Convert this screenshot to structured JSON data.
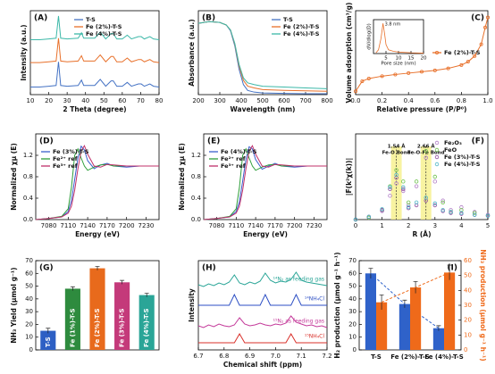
{
  "chart_data": [
    {
      "type": "line",
      "title": "(A)",
      "xlabel": "2 Theta (degree)",
      "ylabel": "Intensity (a.u.)",
      "xlim": [
        10,
        80
      ],
      "xticks": [
        10,
        20,
        30,
        40,
        50,
        60,
        70,
        80
      ],
      "ylim": [
        0,
        11
      ],
      "yticks": [],
      "legend": "upper center",
      "x": [
        10,
        15,
        20,
        24,
        25.3,
        26.5,
        30,
        36,
        37.8,
        39,
        45,
        48,
        51,
        53.9,
        55.1,
        57,
        60,
        62.7,
        65,
        68.8,
        70.3,
        72,
        75,
        77,
        80
      ],
      "series": [
        {
          "name": "T-S",
          "color": "#4472c4",
          "values": [
            1.0,
            1.0,
            1.1,
            1.2,
            4.3,
            1.2,
            1.1,
            1.2,
            1.9,
            1.2,
            1.2,
            2.0,
            1.1,
            1.8,
            1.8,
            1.1,
            1.1,
            1.6,
            1.1,
            1.4,
            1.4,
            1.1,
            1.4,
            1.1,
            1.0
          ]
        },
        {
          "name": "Fe (2%)-T-S",
          "color": "#e8702a",
          "values": [
            4.2,
            4.2,
            4.3,
            4.4,
            7.4,
            4.4,
            4.3,
            4.4,
            5.1,
            4.4,
            4.4,
            5.2,
            4.3,
            5.0,
            5.0,
            4.3,
            4.3,
            4.8,
            4.3,
            4.6,
            4.6,
            4.3,
            4.6,
            4.3,
            4.2
          ]
        },
        {
          "name": "Fe (4%)-T-S",
          "color": "#3cb8a8",
          "values": [
            7.2,
            7.2,
            7.3,
            7.4,
            10.3,
            7.4,
            7.3,
            7.4,
            8.1,
            7.4,
            7.4,
            8.2,
            7.3,
            8.0,
            8.0,
            7.3,
            7.3,
            7.8,
            7.3,
            7.6,
            7.6,
            7.3,
            7.6,
            7.3,
            7.2
          ]
        }
      ]
    },
    {
      "type": "line",
      "title": "(B)",
      "xlabel": "Wavelength (nm)",
      "ylabel": "Absorbance (a.u.)",
      "xlim": [
        200,
        800
      ],
      "xticks": [
        200,
        300,
        400,
        500,
        600,
        700,
        800
      ],
      "ylim": [
        0,
        10
      ],
      "yticks": [],
      "legend": "upper right",
      "x": [
        200,
        250,
        300,
        330,
        350,
        370,
        390,
        410,
        430,
        460,
        500,
        600,
        700,
        800
      ],
      "series": [
        {
          "name": "T-S",
          "color": "#4472c4",
          "values": [
            8.5,
            8.7,
            8.6,
            8.3,
            7.6,
            5.8,
            3.0,
            1.2,
            0.5,
            0.3,
            0.2,
            0.15,
            0.1,
            0.1
          ]
        },
        {
          "name": "Fe (2%)-T-S",
          "color": "#e8702a",
          "values": [
            8.5,
            8.7,
            8.6,
            8.3,
            7.7,
            6.0,
            3.4,
            1.7,
            1.0,
            0.8,
            0.6,
            0.5,
            0.45,
            0.4
          ]
        },
        {
          "name": "Fe (4%)-T-S",
          "color": "#3cb8a8",
          "values": [
            8.5,
            8.7,
            8.6,
            8.3,
            7.7,
            6.1,
            3.6,
            2.0,
            1.4,
            1.2,
            1.0,
            0.9,
            0.8,
            0.7
          ]
        }
      ]
    },
    {
      "type": "line",
      "title": "(C)",
      "xlabel": "Relative pressure (P/P⁰)",
      "ylabel": "Volume adsorption (cm³/g)",
      "xlim": [
        0,
        1
      ],
      "xticks": [
        {
          "value": 0,
          "label": "0.0"
        },
        0.2,
        0.4,
        0.6,
        0.8,
        {
          "value": 1,
          "label": "1.0"
        }
      ],
      "ylim": [
        0,
        250
      ],
      "yticks": [],
      "legend": "center right",
      "x": [
        0,
        0.05,
        0.1,
        0.2,
        0.3,
        0.4,
        0.5,
        0.6,
        0.7,
        0.8,
        0.85,
        0.9,
        0.95,
        0.98,
        1.0
      ],
      "series": [
        {
          "name": "Fe (2%)-T-S",
          "color": "#e8702a",
          "marker": true,
          "values": [
            10,
            40,
            48,
            55,
            60,
            64,
            68,
            72,
            78,
            88,
            98,
            115,
            150,
            200,
            230
          ]
        }
      ]
    },
    {
      "type": "line",
      "xlabel": "Pore size (nm)",
      "ylabel": "dV/dlog(D)",
      "xlim": [
        0,
        20
      ],
      "xticks": [
        5,
        10,
        15,
        20
      ],
      "ylim": [
        0,
        4.5
      ],
      "yticks": [],
      "x": [
        1,
        2,
        3,
        3.8,
        4.5,
        5,
        6,
        8,
        10,
        15,
        20
      ],
      "series": [
        {
          "color": "#e8702a",
          "values": [
            0.1,
            0.5,
            2.0,
            4.0,
            2.5,
            1.2,
            0.5,
            0.3,
            0.2,
            0.1,
            0.05
          ]
        }
      ],
      "annotations": [
        {
          "x": 3.8,
          "label": "3.8 nm"
        }
      ]
    },
    {
      "type": "line",
      "title": "(D)",
      "xlabel": "Energy (eV)",
      "ylabel": "Normalized χμ (E)",
      "xlim": [
        7060,
        7250
      ],
      "xticks": [
        7080,
        7110,
        7140,
        7170,
        7200,
        7230
      ],
      "ylim": [
        0,
        1.6
      ],
      "yticks": [
        {
          "value": 0,
          "label": "0.0"
        },
        0.4,
        0.8,
        1.2
      ],
      "legend": "upper left",
      "x": [
        7060,
        7080,
        7100,
        7110,
        7115,
        7120,
        7125,
        7130,
        7135,
        7140,
        7150,
        7160,
        7170,
        7180,
        7200,
        7220,
        7250
      ],
      "series": [
        {
          "name": "Fe (3%)-T-S",
          "color": "#3a5fcd",
          "values": [
            0.0,
            0.02,
            0.05,
            0.15,
            0.35,
            0.75,
            1.15,
            1.37,
            1.3,
            1.1,
            0.95,
            1.02,
            1.05,
            1.0,
            0.98,
            1.0,
            1.0
          ]
        },
        {
          "name": "Fe²⁺ ref",
          "color": "#2e9e3a",
          "values": [
            0.0,
            0.02,
            0.06,
            0.2,
            0.6,
            1.2,
            1.32,
            1.15,
            1.0,
            0.92,
            0.98,
            1.02,
            1.03,
            1.0,
            1.0,
            1.0,
            1.0
          ]
        },
        {
          "name": "Fe³⁺ ref",
          "color": "#c0306a",
          "values": [
            0.0,
            0.02,
            0.05,
            0.12,
            0.25,
            0.55,
            0.95,
            1.28,
            1.38,
            1.22,
            1.0,
            0.98,
            1.03,
            1.02,
            1.0,
            1.0,
            1.0
          ]
        }
      ]
    },
    {
      "type": "line",
      "title": "(E)",
      "xlabel": "Energy (eV)",
      "ylabel": "Normalized χμ (E)",
      "xlim": [
        7060,
        7250
      ],
      "xticks": [
        7080,
        7110,
        7140,
        7170,
        7200,
        7230
      ],
      "ylim": [
        0,
        1.6
      ],
      "yticks": [
        {
          "value": 0,
          "label": "0.0"
        },
        0.4,
        0.8,
        1.2
      ],
      "legend": "upper left",
      "x": [
        7060,
        7080,
        7100,
        7110,
        7115,
        7120,
        7125,
        7130,
        7135,
        7140,
        7150,
        7160,
        7170,
        7180,
        7200,
        7220,
        7250
      ],
      "series": [
        {
          "name": "Fe (4%)-T-S",
          "color": "#3a5fcd",
          "values": [
            0.0,
            0.02,
            0.05,
            0.15,
            0.33,
            0.72,
            1.12,
            1.36,
            1.32,
            1.12,
            0.94,
            1.0,
            1.05,
            1.0,
            0.98,
            1.0,
            1.0
          ]
        },
        {
          "name": "Fe²⁺ ref",
          "color": "#2e9e3a",
          "values": [
            0.0,
            0.02,
            0.06,
            0.2,
            0.6,
            1.2,
            1.32,
            1.15,
            1.0,
            0.92,
            0.98,
            1.02,
            1.03,
            1.0,
            1.0,
            1.0,
            1.0
          ]
        },
        {
          "name": "Fe³⁺ ref",
          "color": "#c0306a",
          "values": [
            0.0,
            0.02,
            0.05,
            0.12,
            0.25,
            0.55,
            0.95,
            1.28,
            1.38,
            1.22,
            1.0,
            0.98,
            1.03,
            1.02,
            1.0,
            1.0,
            1.0
          ]
        }
      ]
    },
    {
      "type": "scatter",
      "title": "(F)",
      "xlabel": "R (Å)",
      "ylabel": "|F(k²χ(k))|",
      "xlim": [
        0,
        5
      ],
      "xticks": [
        0,
        1,
        2,
        3,
        4,
        5
      ],
      "ylim": [
        0,
        9
      ],
      "yticks": [],
      "legend": "upper right",
      "x": [
        0,
        0.5,
        1.0,
        1.3,
        1.54,
        1.8,
        2.0,
        2.3,
        2.66,
        3.0,
        3.3,
        3.6,
        4.0,
        4.5,
        5.0
      ],
      "series": [
        {
          "name": "Fe₂O₃",
          "color": "#b07cc6",
          "values": [
            0,
            0.2,
            0.9,
            2.5,
            3.8,
            3.0,
            1.5,
            3.5,
            6.5,
            4.0,
            2.0,
            1.0,
            1.3,
            0.8,
            0.5
          ]
        },
        {
          "name": "FeO",
          "color": "#6cc04a",
          "values": [
            0,
            0.2,
            1.0,
            3.5,
            5.2,
            4.0,
            1.8,
            4.0,
            7.2,
            4.5,
            1.8,
            0.8,
            1.0,
            0.7,
            0.4
          ]
        },
        {
          "name": "Fe (3%)-T-S",
          "color": "#8d4a9e",
          "values": [
            0,
            0.3,
            1.0,
            3.2,
            4.4,
            3.2,
            1.2,
            1.5,
            2.0,
            1.5,
            0.9,
            0.7,
            0.6,
            0.5,
            0.4
          ]
        },
        {
          "name": "Fe (4%)-T-S",
          "color": "#4fb6c8",
          "values": [
            0,
            0.3,
            1.1,
            3.4,
            4.7,
            3.4,
            1.3,
            1.8,
            2.3,
            1.7,
            1.0,
            0.8,
            0.7,
            0.5,
            0.4
          ]
        }
      ],
      "annotation_lines": true,
      "annotations": [
        {
          "x": 1.54,
          "label": "1.54 Å",
          "text": "Fe-O Bond"
        },
        {
          "x": 2.66,
          "label": "2.66 Å",
          "text": "Fe-O-Fe Bond"
        }
      ]
    },
    {
      "type": "bar",
      "title": "(G)",
      "ylabel": "NH₃ Yield (μmol g⁻¹)",
      "category_labels": "inside",
      "categories": [
        "T-S",
        "Fe (1%)-T-S",
        "Fe (2%)-T-S",
        "Fe (3%)-T-S",
        "Fe (4%)-T-S"
      ],
      "values": [
        15,
        48,
        64,
        53,
        43
      ],
      "errors": [
        2,
        1.5,
        1.5,
        1.5,
        1.5
      ],
      "colors": [
        "#2d5fc4",
        "#2e8b3e",
        "#e86a1c",
        "#c43a7a",
        "#2aa597"
      ],
      "ylim": [
        0,
        70
      ],
      "yticks": [
        0,
        10,
        20,
        30,
        40,
        50,
        60,
        70
      ]
    },
    {
      "type": "line",
      "title": "(H)",
      "xlabel": "Chemical shift (ppm)",
      "ylabel": "Intensity",
      "legend": "inline",
      "xlim": [
        6.7,
        7.2
      ],
      "xticks": [
        6.7,
        6.8,
        6.9,
        {
          "value": 7,
          "label": "7.0"
        },
        7.1,
        7.2
      ],
      "ylim": [
        0,
        10
      ],
      "yticks": [],
      "x": [
        6.7,
        6.72,
        6.74,
        6.76,
        6.78,
        6.8,
        6.82,
        6.84,
        6.86,
        6.88,
        6.9,
        6.92,
        6.94,
        6.96,
        6.98,
        7.0,
        7.02,
        7.04,
        7.06,
        7.08,
        7.1,
        7.12,
        7.14,
        7.16,
        7.18,
        7.2
      ],
      "series": [
        {
          "name": "¹⁴N₂ as feeding gas",
          "color": "#2aa597",
          "values": [
            7.3,
            7.1,
            7.4,
            7.2,
            7.5,
            7.3,
            7.6,
            8.4,
            7.5,
            7.3,
            7.6,
            7.4,
            7.7,
            8.6,
            7.8,
            7.5,
            7.7,
            7.6,
            7.9,
            8.7,
            7.8,
            7.6,
            7.5,
            7.4,
            7.3,
            7.2
          ]
        },
        {
          "name": "¹⁴NH₄Cl",
          "color": "#2d4fc4",
          "values": [
            5.0,
            5.0,
            5.0,
            5.0,
            5.0,
            5.0,
            5.0,
            6.2,
            5.0,
            5.0,
            5.0,
            5.0,
            5.0,
            6.2,
            5.0,
            5.0,
            5.0,
            5.0,
            5.0,
            6.2,
            5.0,
            5.0,
            5.0,
            5.0,
            5.0,
            5.0
          ]
        },
        {
          "name": "¹⁵N₂ as feeding gas",
          "color": "#c43a9a",
          "values": [
            2.7,
            2.5,
            2.8,
            2.6,
            2.9,
            2.7,
            2.6,
            2.8,
            3.6,
            2.9,
            2.7,
            2.8,
            3.0,
            2.8,
            2.7,
            2.9,
            2.8,
            3.0,
            3.8,
            3.1,
            2.9,
            2.7,
            2.8,
            2.6,
            2.7,
            2.5
          ]
        },
        {
          "name": "¹⁵NH₄Cl",
          "color": "#d9302a",
          "values": [
            0.8,
            0.8,
            0.8,
            0.8,
            0.8,
            0.8,
            0.8,
            0.8,
            1.8,
            0.8,
            0.8,
            0.8,
            0.8,
            0.8,
            0.8,
            0.8,
            0.8,
            0.8,
            1.8,
            0.8,
            0.8,
            0.8,
            0.8,
            0.8,
            0.8,
            0.8
          ]
        }
      ]
    },
    {
      "type": "bar",
      "title": "(I)",
      "ylabel": "H₂ production (μmol g⁻¹ h⁻¹)",
      "y2label": "NH₃ production (μmol g⁻¹ h⁻¹)",
      "categories": [
        "T-S",
        "Fe (2%)-T-S",
        "Fe (4%)-T-S"
      ],
      "ylim": [
        0,
        70
      ],
      "yticks": [
        0,
        10,
        20,
        30,
        40,
        50,
        60,
        70
      ],
      "y2lim": [
        0,
        60
      ],
      "y2ticks": [
        0,
        10,
        20,
        30,
        40,
        50,
        60
      ],
      "series": [
        {
          "name": "H₂ production",
          "color": "#2f62c9",
          "values": [
            60,
            36,
            17
          ],
          "errors": [
            4,
            3,
            2
          ],
          "trend": true
        },
        {
          "name": "NH₃ production",
          "color": "#ef6a1a",
          "axis": "y2",
          "values": [
            32,
            42,
            52
          ],
          "errors": [
            5,
            4,
            5
          ],
          "trend": true
        }
      ]
    }
  ]
}
